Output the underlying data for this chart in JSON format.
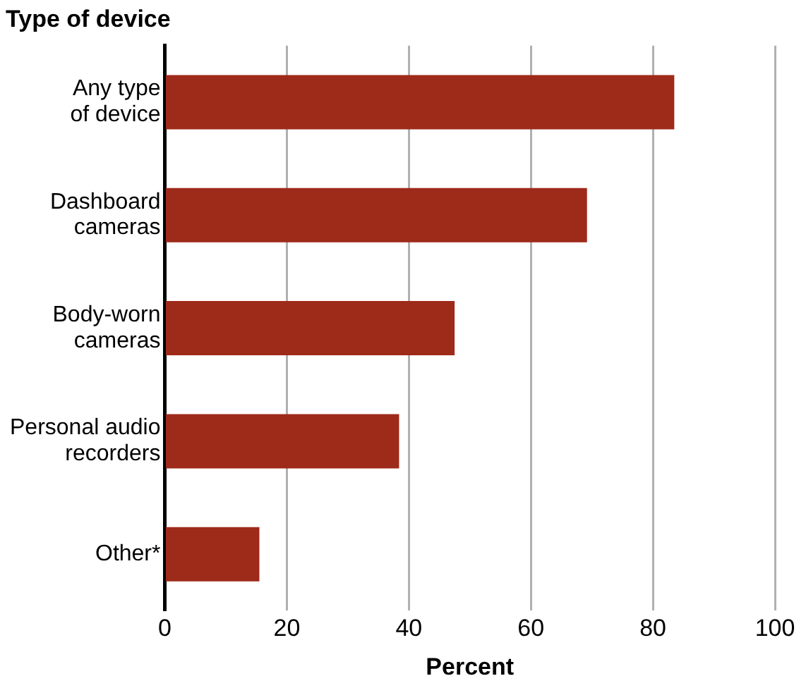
{
  "chart_data": {
    "type": "bar",
    "orientation": "horizontal",
    "ylabel": "Type of device",
    "xlabel": "Percent",
    "categories": [
      "Any type\nof device",
      "Dashboard\ncameras",
      "Body-worn\ncameras",
      "Personal audio\nrecorders",
      "Other*"
    ],
    "values": [
      83.5,
      69.2,
      47.5,
      38.4,
      15.5
    ],
    "color": "#9e2a1a",
    "xlim": [
      0,
      100
    ],
    "xticks": [
      0,
      20,
      40,
      60,
      80,
      100
    ],
    "grid": "x",
    "legend": false
  }
}
